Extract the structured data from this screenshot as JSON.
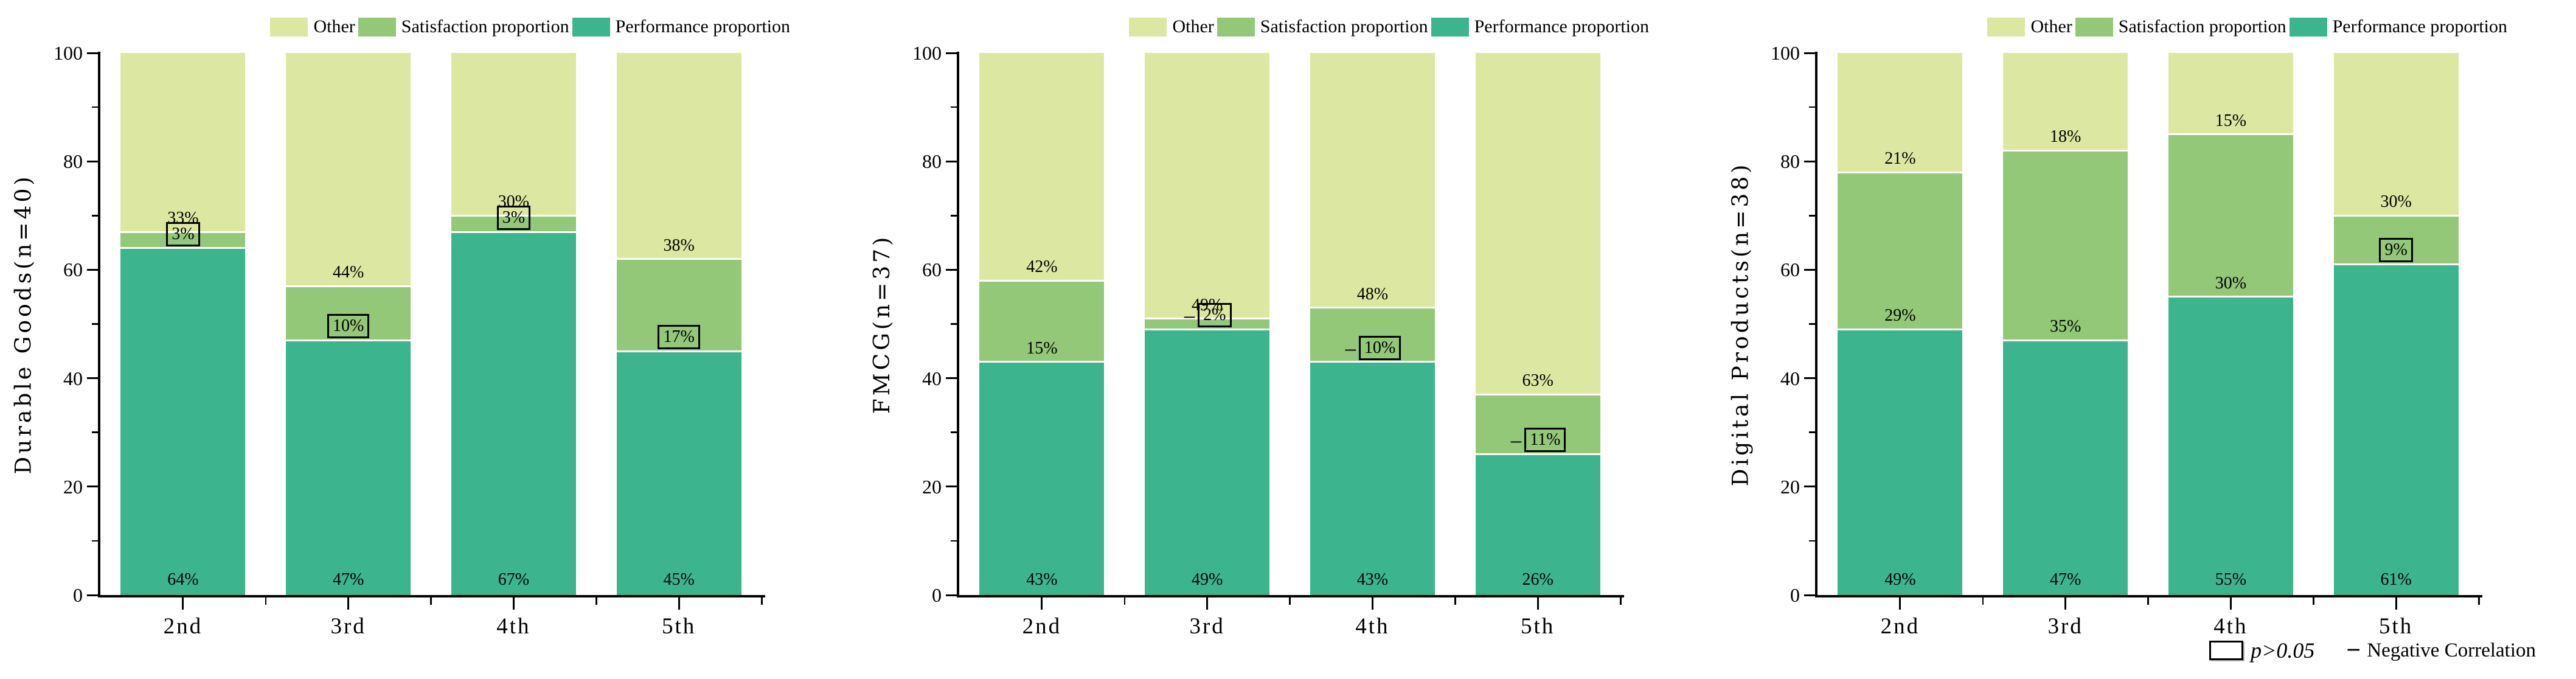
{
  "colors": {
    "other": "#dce8a2",
    "satisfaction": "#92c877",
    "performance": "#3cb48d",
    "axis": "#000000"
  },
  "legend": {
    "items": [
      {
        "label": "Other",
        "color_key": "other"
      },
      {
        "label": "Satisfaction proportion",
        "color_key": "satisfaction"
      },
      {
        "label": "Performance proportion",
        "color_key": "performance"
      }
    ]
  },
  "axes": {
    "ylim": [
      0,
      100
    ],
    "y_ticks": [
      0,
      20,
      40,
      60,
      80,
      100
    ],
    "y_minor_ticks": [
      10,
      30,
      50,
      70,
      90
    ],
    "categories": [
      "2nd",
      "3rd",
      "4th",
      "5th"
    ]
  },
  "footnote": {
    "p_label": "p>0.05",
    "minus_symbol": "−",
    "negative_label": "Negative Correlation"
  },
  "chart_data": [
    {
      "type": "bar",
      "stacked": true,
      "ylabel": "Durable Goods(n=40)",
      "ylim": [
        0,
        100
      ],
      "grid": false,
      "legend_position": "top",
      "categories": [
        "2nd",
        "3rd",
        "4th",
        "5th"
      ],
      "series": [
        {
          "name": "Performance proportion",
          "color_key": "performance",
          "values": [
            64,
            47,
            67,
            45
          ],
          "label_boxed": [
            false,
            false,
            false,
            false
          ],
          "label_negative": [
            false,
            false,
            false,
            false
          ]
        },
        {
          "name": "Satisfaction proportion",
          "color_key": "satisfaction",
          "values": [
            3,
            10,
            3,
            17
          ],
          "label_boxed": [
            true,
            true,
            true,
            true
          ],
          "label_negative": [
            false,
            false,
            false,
            false
          ]
        },
        {
          "name": "Other",
          "color_key": "other",
          "values": [
            33,
            44,
            30,
            38
          ],
          "label_boxed": [
            false,
            false,
            false,
            false
          ],
          "label_negative": [
            false,
            false,
            false,
            false
          ]
        }
      ]
    },
    {
      "type": "bar",
      "stacked": true,
      "ylabel": "FMCG(n=37)",
      "ylim": [
        0,
        100
      ],
      "grid": false,
      "legend_position": "top",
      "categories": [
        "2nd",
        "3rd",
        "4th",
        "5th"
      ],
      "series": [
        {
          "name": "Performance proportion",
          "color_key": "performance",
          "values": [
            43,
            49,
            43,
            26
          ],
          "label_boxed": [
            false,
            false,
            false,
            false
          ],
          "label_negative": [
            false,
            false,
            false,
            false
          ]
        },
        {
          "name": "Satisfaction proportion",
          "color_key": "satisfaction",
          "values": [
            15,
            2,
            10,
            11
          ],
          "label_boxed": [
            false,
            true,
            true,
            true
          ],
          "label_negative": [
            false,
            true,
            true,
            true
          ]
        },
        {
          "name": "Other",
          "color_key": "other",
          "values": [
            42,
            49,
            48,
            63
          ],
          "label_boxed": [
            false,
            false,
            false,
            false
          ],
          "label_negative": [
            false,
            false,
            false,
            false
          ]
        }
      ]
    },
    {
      "type": "bar",
      "stacked": true,
      "ylabel": "Digital Products(n=38)",
      "ylim": [
        0,
        100
      ],
      "grid": false,
      "legend_position": "top",
      "categories": [
        "2nd",
        "3rd",
        "4th",
        "5th"
      ],
      "series": [
        {
          "name": "Performance proportion",
          "color_key": "performance",
          "values": [
            49,
            47,
            55,
            61
          ],
          "label_boxed": [
            false,
            false,
            false,
            false
          ],
          "label_negative": [
            false,
            false,
            false,
            false
          ]
        },
        {
          "name": "Satisfaction proportion",
          "color_key": "satisfaction",
          "values": [
            29,
            35,
            30,
            9
          ],
          "label_boxed": [
            false,
            false,
            false,
            true
          ],
          "label_negative": [
            false,
            false,
            false,
            false
          ]
        },
        {
          "name": "Other",
          "color_key": "other",
          "values": [
            21,
            18,
            15,
            30
          ],
          "label_boxed": [
            false,
            false,
            false,
            false
          ],
          "label_negative": [
            false,
            false,
            false,
            false
          ]
        }
      ]
    }
  ]
}
